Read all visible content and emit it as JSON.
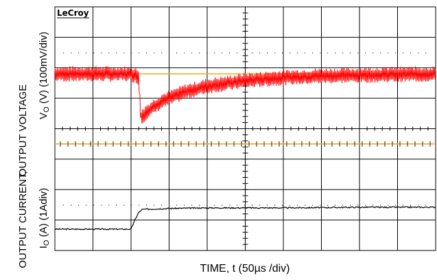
{
  "brand": "LeCroy",
  "labels": {
    "y_top_1": "OUTPUT VOLTAGE",
    "y_top_2_prefix": "V",
    "y_top_2_sub": "O",
    "y_top_2_suffix": " (V) (100mV/div)",
    "y_bottom_1": "OUTPUT CURRENT,",
    "y_bottom_2_prefix": "I",
    "y_bottom_2_sub": "O",
    "y_bottom_2_suffix": " (A)  (1Adiv)",
    "x": "TIME, t (50µs /div)"
  },
  "colors": {
    "voltage_trace": "#ff0000",
    "current_trace": "#000000",
    "reference_line": "#f5a623",
    "grid": "#000000"
  },
  "chart_data": {
    "type": "line",
    "title": "",
    "xlabel": "TIME, t (50µs /div)",
    "x_units": "µs",
    "x_per_div": 50,
    "xlim": [
      0,
      500
    ],
    "grid": true,
    "divisions": {
      "x": 10,
      "y": 8
    },
    "load_step_time": 110,
    "series": [
      {
        "name": "OUTPUT VOLTAGE",
        "units": "mV",
        "per_div": 100,
        "ripple_pp": 40,
        "x": [
          0,
          100,
          110,
          113,
          120,
          140,
          170,
          200,
          250,
          300,
          350,
          400,
          450,
          500
        ],
        "values": [
          0,
          0,
          -10,
          -145,
          -125,
          -90,
          -60,
          -40,
          -22,
          -12,
          -7,
          -4,
          -2,
          0
        ]
      },
      {
        "name": "OUTPUT CURRENT",
        "units": "A",
        "per_div": 1,
        "x": [
          0,
          100,
          105,
          110,
          115,
          150,
          200,
          300,
          400,
          500
        ],
        "values": [
          0,
          0,
          0.3,
          0.55,
          0.65,
          0.68,
          0.7,
          0.7,
          0.72,
          0.72
        ]
      }
    ]
  }
}
